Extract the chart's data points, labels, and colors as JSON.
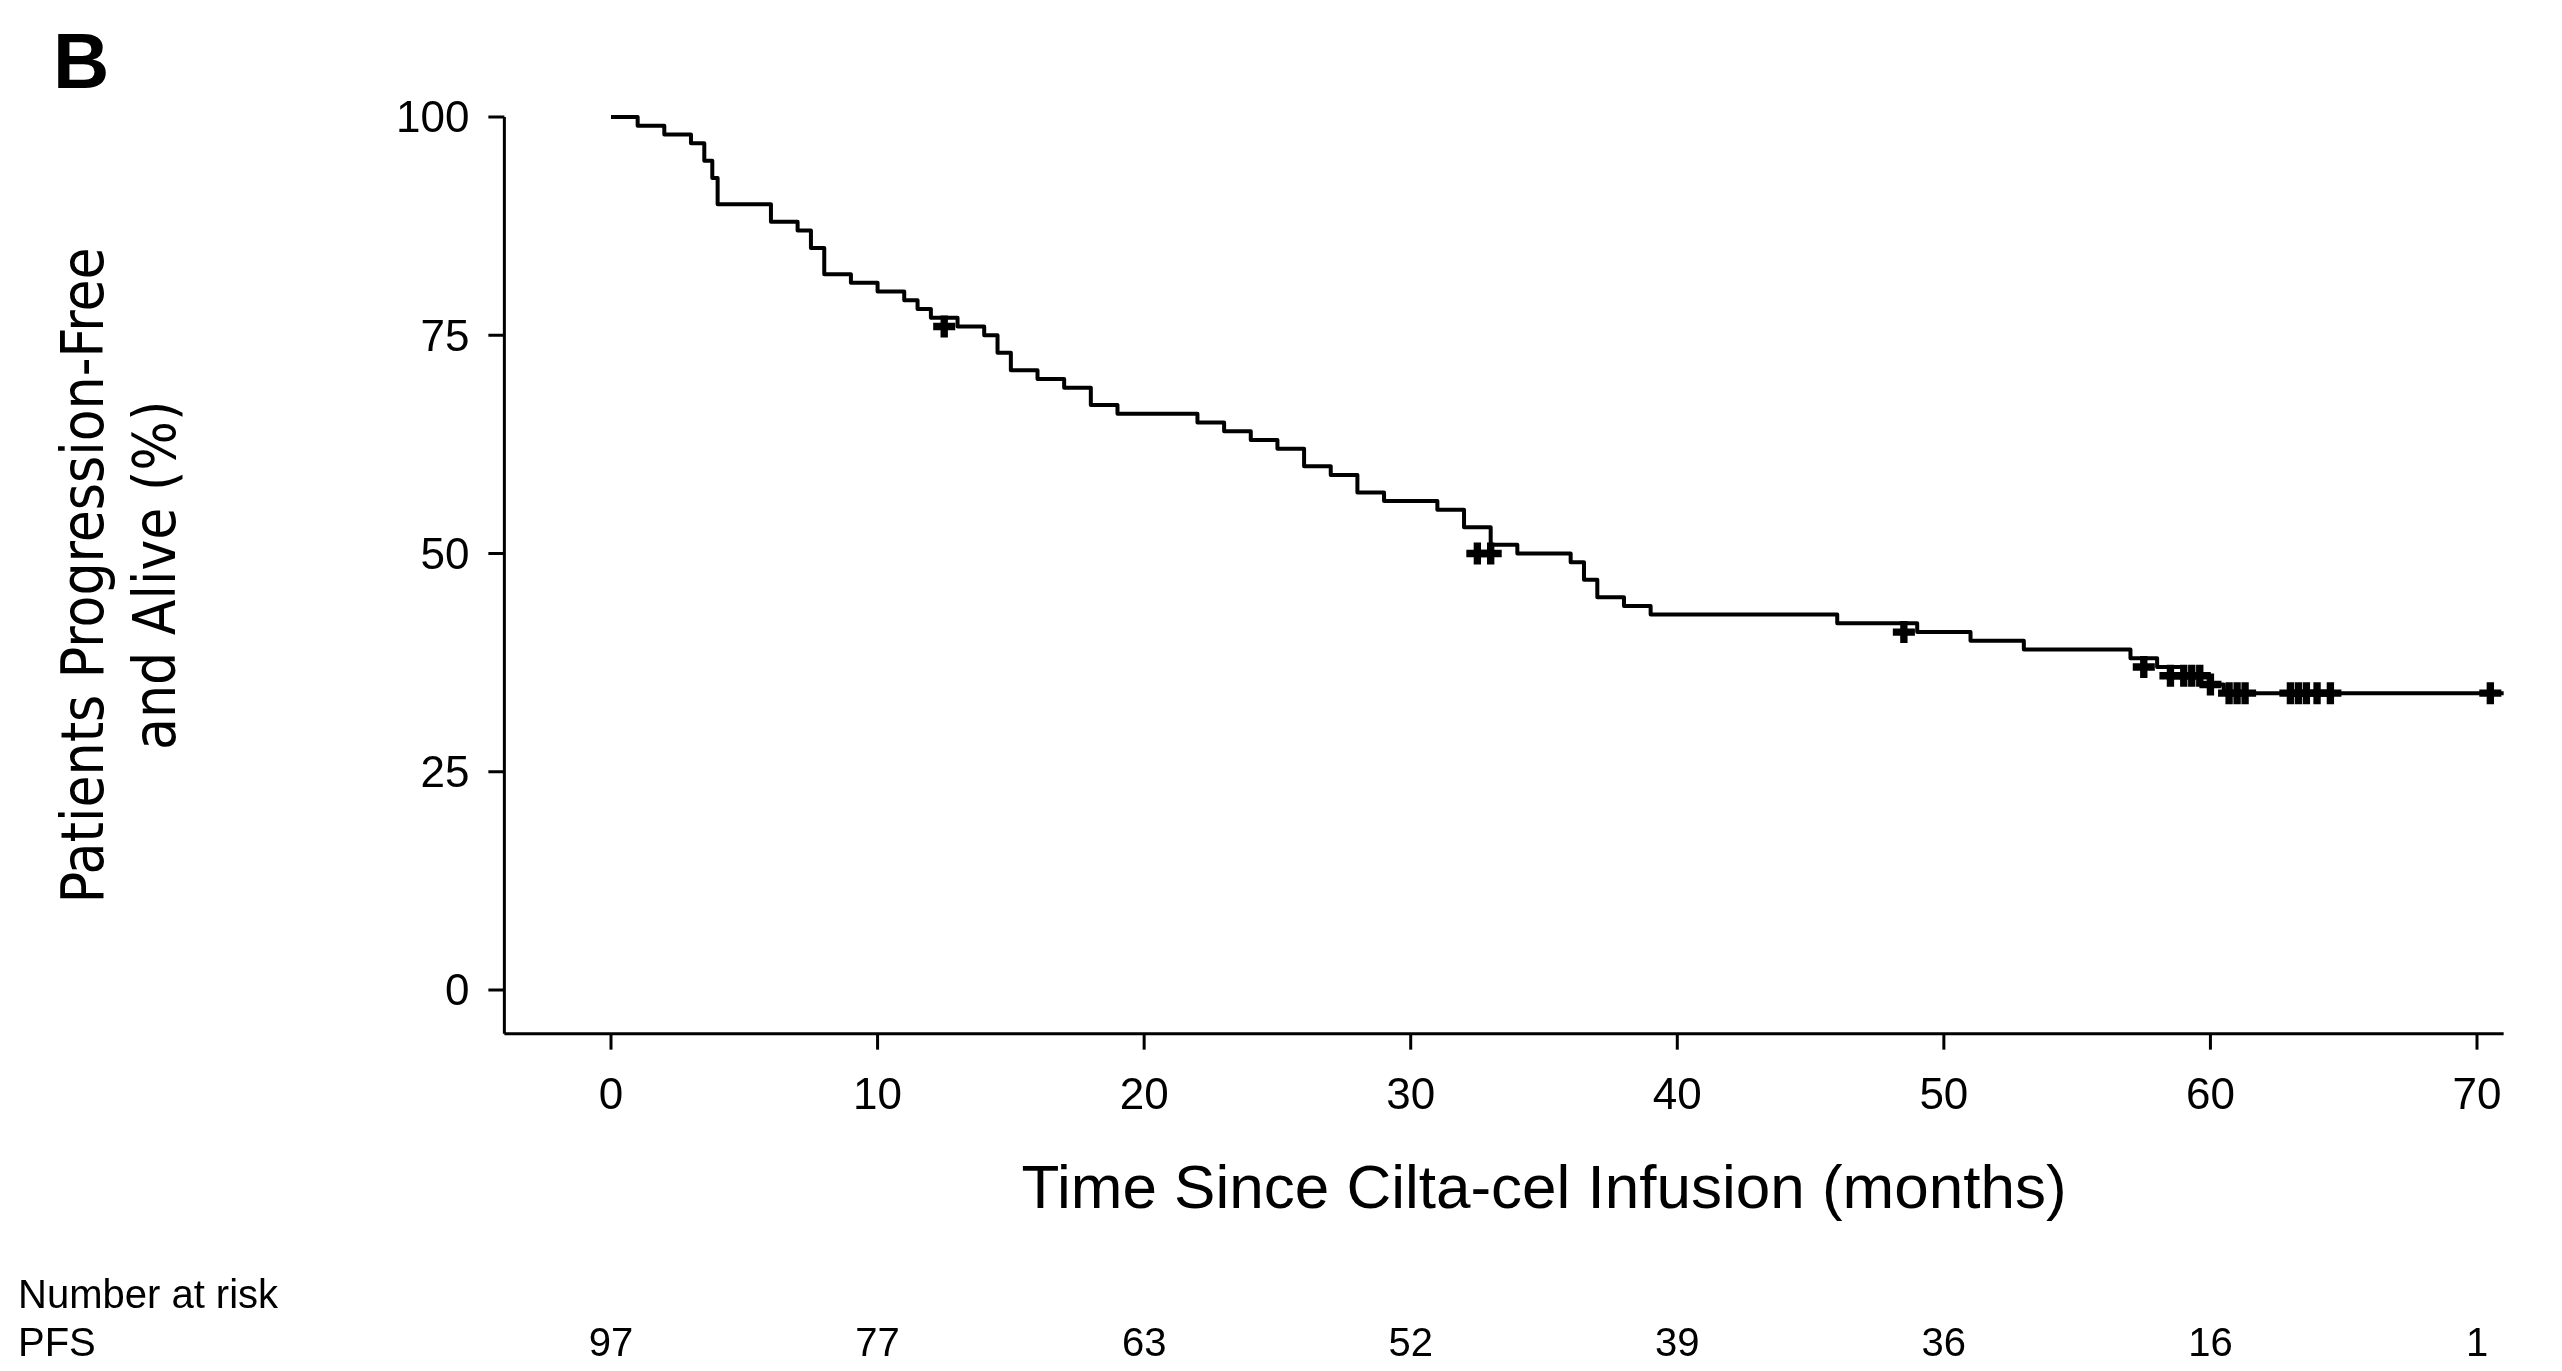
{
  "chart_data": {
    "type": "step",
    "title": "B",
    "xlabel": "Time Since Cilta-cel Infusion (months)",
    "ylabel": "Patients Progression-Free\nand Alive (%)",
    "xlim": [
      -4,
      71
    ],
    "ylim": [
      -5,
      100
    ],
    "xticks": [
      0,
      10,
      20,
      30,
      40,
      50,
      60,
      70
    ],
    "yticks": [
      0,
      25,
      50,
      75,
      100
    ],
    "series": [
      {
        "color": "#000000",
        "x": [
          0,
          1,
          2,
          3,
          3.5,
          3.8,
          4,
          5.5,
          6,
          7,
          7.5,
          8,
          9,
          10,
          11,
          11.5,
          12,
          13,
          14,
          14.5,
          15,
          16,
          17,
          18,
          19,
          21,
          22,
          23,
          24,
          25,
          26,
          27,
          28,
          29,
          31,
          32,
          33,
          34,
          36,
          36.5,
          37,
          38,
          39,
          42,
          46,
          49,
          51,
          53,
          57,
          58,
          59,
          60,
          60.5,
          71
        ],
        "values": [
          100,
          99,
          98,
          97,
          95,
          93,
          90,
          90,
          88,
          87,
          85,
          82,
          81,
          80,
          79,
          78,
          77,
          76,
          75,
          73,
          71,
          70,
          69,
          67,
          66,
          66,
          65,
          64,
          63,
          62,
          60,
          59,
          57,
          56,
          55,
          53,
          51,
          50,
          49,
          47,
          45,
          44,
          43,
          43,
          42,
          41,
          40,
          39,
          38,
          37,
          36,
          35,
          34,
          34
        ]
      },
      {
        "type": "scatter",
        "marker": "cross",
        "color": "#000000",
        "x": [
          12.5,
          32.5,
          33,
          48.5,
          57.5,
          58.5,
          59,
          59.3,
          59.6,
          60,
          60.7,
          61,
          61.3,
          63,
          63.3,
          63.6,
          64,
          64.5,
          70.5
        ],
        "values": [
          76,
          50,
          50,
          41,
          37,
          36,
          36,
          36,
          36,
          35,
          34,
          34,
          34,
          34,
          34,
          34,
          34,
          34,
          34
        ]
      }
    ],
    "annotations": [
      "Number at risk",
      "PFS",
      "97",
      "77",
      "63",
      "52",
      "39",
      "36",
      "16",
      "1"
    ]
  }
}
